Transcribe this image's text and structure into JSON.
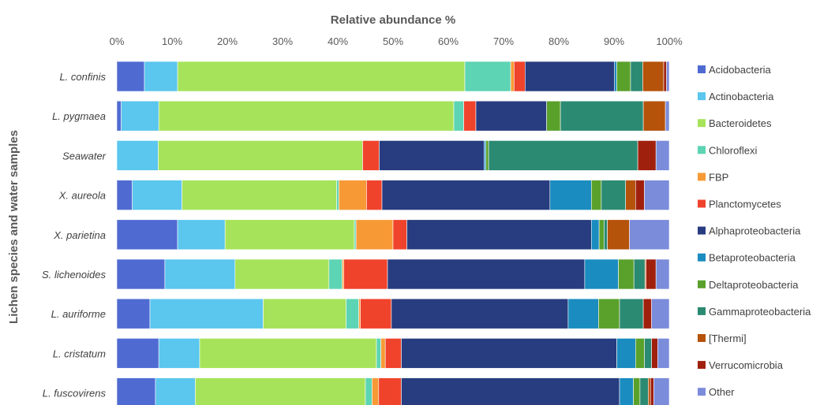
{
  "chart_data": {
    "type": "bar",
    "orientation": "horizontal",
    "stacked": true,
    "title": "Relative abundance %",
    "xlabel": "",
    "ylabel": "Lichen species and water samples",
    "xlim": [
      0,
      100
    ],
    "x_ticks": [
      "0%",
      "10%",
      "20%",
      "30%",
      "40%",
      "50%",
      "60%",
      "70%",
      "80%",
      "90%",
      "100%"
    ],
    "grid": false,
    "legend_position": "right",
    "categories": [
      "L. confinis",
      "L. pygmaea",
      "Seawater",
      "X. aureola",
      "X. parietina",
      "S. lichenoides",
      "L. auriforme",
      "L. cristatum",
      "L. fuscovirens"
    ],
    "series": [
      {
        "name": "Acidobacteria",
        "color": "#4f6bd2",
        "values": [
          5.0,
          0.8,
          0.0,
          2.8,
          11.0,
          8.7,
          6.0,
          7.6,
          7.0
        ]
      },
      {
        "name": "Actinobacteria",
        "color": "#5bc6ee",
        "values": [
          6.0,
          6.8,
          7.5,
          9.0,
          8.6,
          12.7,
          20.5,
          7.4,
          7.2
        ]
      },
      {
        "name": "Bacteroidetes",
        "color": "#a6e35a",
        "values": [
          52.0,
          53.4,
          37.0,
          28.0,
          23.4,
          17.0,
          15.0,
          32.0,
          30.8
        ]
      },
      {
        "name": "Chloroflexi",
        "color": "#5dd4b3",
        "values": [
          8.3,
          1.8,
          0.0,
          0.4,
          0.3,
          2.4,
          2.3,
          0.8,
          1.2
        ]
      },
      {
        "name": "FBP",
        "color": "#f79a36",
        "values": [
          0.6,
          0.0,
          0.0,
          5.0,
          6.7,
          0.3,
          0.3,
          0.8,
          1.2
        ]
      },
      {
        "name": "Planctomycetes",
        "color": "#f0432c",
        "values": [
          2.0,
          2.2,
          3.0,
          2.8,
          2.5,
          7.9,
          5.6,
          2.9,
          4.1
        ]
      },
      {
        "name": "Alphaproteobacteria",
        "color": "#283c80",
        "values": [
          16.2,
          12.8,
          19.0,
          30.4,
          33.4,
          35.7,
          32.0,
          39.0,
          39.5
        ]
      },
      {
        "name": "Betaproteobacteria",
        "color": "#1a8cc0",
        "values": [
          0.4,
          0.0,
          0.3,
          7.5,
          1.4,
          6.1,
          5.5,
          3.4,
          2.5
        ]
      },
      {
        "name": "Deltaproteobacteria",
        "color": "#5aa12c",
        "values": [
          2.5,
          2.5,
          0.5,
          1.8,
          0.9,
          2.8,
          3.8,
          1.6,
          1.2
        ]
      },
      {
        "name": "Gammaproteobacteria",
        "color": "#2b8a72",
        "values": [
          2.2,
          15.0,
          27.0,
          4.4,
          0.6,
          2.0,
          4.3,
          1.3,
          1.5
        ]
      },
      {
        "name": "[Thermi]",
        "color": "#b5530b",
        "values": [
          3.8,
          4.0,
          0.0,
          1.8,
          4.0,
          0.2,
          0.0,
          0.0,
          0.4
        ]
      },
      {
        "name": "Verrucomicrobia",
        "color": "#a0200e",
        "values": [
          0.5,
          0.0,
          3.3,
          1.6,
          0.0,
          1.8,
          1.5,
          1.1,
          0.6
        ]
      },
      {
        "name": "Other",
        "color": "#7b8cdb",
        "values": [
          0.5,
          0.7,
          2.4,
          4.5,
          7.2,
          2.4,
          3.2,
          2.1,
          2.8
        ]
      }
    ]
  }
}
